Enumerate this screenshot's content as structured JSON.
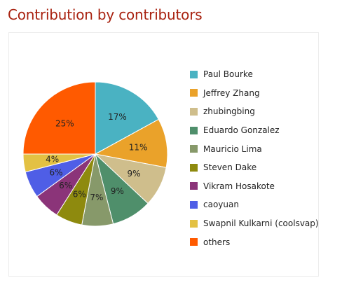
{
  "chart_data": {
    "type": "pie",
    "title": "Contribution by contributors",
    "slices": [
      {
        "name": "Paul Bourke",
        "value": 17,
        "label": "17%",
        "color": "#4ab2c2"
      },
      {
        "name": "Jeffrey Zhang",
        "value": 11,
        "label": "11%",
        "color": "#eaa22a"
      },
      {
        "name": "zhubingbing",
        "value": 9,
        "label": "9%",
        "color": "#cfbe8c"
      },
      {
        "name": "Eduardo Gonzalez",
        "value": 9,
        "label": "9%",
        "color": "#4f8f6b"
      },
      {
        "name": "Mauricio Lima",
        "value": 7,
        "label": "7%",
        "color": "#87996a"
      },
      {
        "name": "Steven Dake",
        "value": 6,
        "label": "6%",
        "color": "#8e8a0e"
      },
      {
        "name": "Vikram Hosakote",
        "value": 6,
        "label": "6%",
        "color": "#8b3479"
      },
      {
        "name": "caoyuan",
        "value": 6,
        "label": "6%",
        "color": "#4f5ee6"
      },
      {
        "name": "Swapnil Kulkarni (coolsvap)",
        "value": 4,
        "label": "4%",
        "color": "#e3c143"
      },
      {
        "name": "others",
        "value": 25,
        "label": "25%",
        "color": "#ff5a00"
      }
    ],
    "legend_position": "right"
  }
}
